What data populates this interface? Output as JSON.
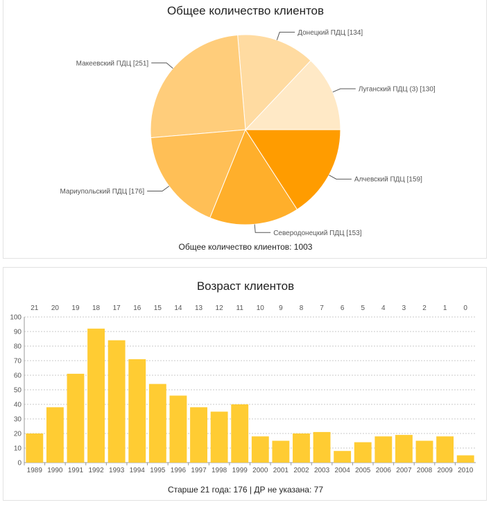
{
  "chart_data": [
    {
      "type": "pie",
      "title": "Общее количество клиентов",
      "slices": [
        {
          "label": "Луганский ПДЦ (3) [130]",
          "value": 130,
          "color": "#ffe9c6"
        },
        {
          "label": "Донецкий ПДЦ [134]",
          "value": 134,
          "color": "#ffdba1"
        },
        {
          "label": "Макеевский ПДЦ [251]",
          "value": 251,
          "color": "#ffcd7b"
        },
        {
          "label": "Мариупольский ПДЦ [176]",
          "value": 176,
          "color": "#ffbf56"
        },
        {
          "label": "Северодонецкий ПДЦ [153]",
          "value": 153,
          "color": "#ffaf2b"
        },
        {
          "label": "Алчевский ПДЦ [159]",
          "value": 159,
          "color": "#ff9c00"
        }
      ],
      "footer": "Общее количество клиентов: 1003"
    },
    {
      "type": "bar",
      "title": "Возраст клиентов",
      "categories": [
        "1989",
        "1990",
        "1991",
        "1992",
        "1993",
        "1994",
        "1995",
        "1996",
        "1997",
        "1998",
        "1999",
        "2000",
        "2001",
        "2002",
        "2003",
        "2004",
        "2005",
        "2006",
        "2007",
        "2008",
        "2009",
        "2010"
      ],
      "top_labels": [
        "21",
        "20",
        "19",
        "18",
        "17",
        "16",
        "15",
        "14",
        "13",
        "12",
        "11",
        "10",
        "9",
        "8",
        "7",
        "6",
        "5",
        "4",
        "3",
        "2",
        "1",
        "0"
      ],
      "values": [
        20,
        38,
        61,
        92,
        84,
        71,
        54,
        46,
        38,
        35,
        40,
        18,
        15,
        20,
        21,
        8,
        14,
        18,
        19,
        15,
        18,
        5
      ],
      "ylim": [
        0,
        100
      ],
      "yticks": [
        0,
        10,
        20,
        30,
        40,
        50,
        60,
        70,
        80,
        90,
        100
      ],
      "bar_color": "#ffcc33",
      "grid": true,
      "footer": "Старше 21 года: 176 | ДР не указана: 77"
    }
  ]
}
